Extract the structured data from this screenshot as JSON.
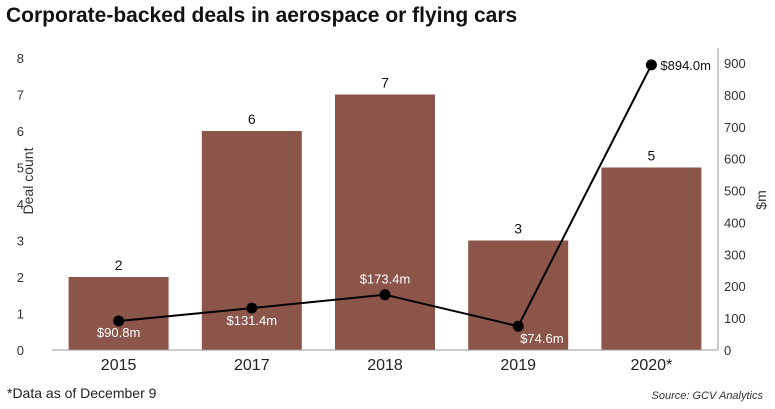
{
  "title": "Corporate-backed deals in aerospace or flying cars",
  "footnote": "*Data as of December 9",
  "source": "Source: GCV Analytics",
  "chart_data": {
    "type": "bar+line",
    "categories": [
      "2015",
      "2017",
      "2018",
      "2019",
      "2020*"
    ],
    "series": [
      {
        "name": "Deal count",
        "type": "bar",
        "axis": "left",
        "values": [
          2,
          6,
          7,
          3,
          5
        ],
        "labels": [
          "2",
          "6",
          "7",
          "3",
          "5"
        ]
      },
      {
        "name": "$m",
        "type": "line",
        "axis": "right",
        "values": [
          90.8,
          131.4,
          173.4,
          74.6,
          894.0
        ],
        "labels": [
          "$90.8m",
          "$131.4m",
          "$173.4m",
          "$74.6m",
          "$894.0m"
        ]
      }
    ],
    "ylabel_left": "Deal count",
    "ylabel_right": "$m",
    "ylim_left": [
      0,
      8
    ],
    "ylim_right": [
      0,
      900
    ],
    "yticks_left": [
      "0",
      "1",
      "2",
      "3",
      "4",
      "5",
      "6",
      "7",
      "8"
    ],
    "yticks_right": [
      "0",
      "100",
      "200",
      "300",
      "400",
      "500",
      "600",
      "700",
      "800",
      "900"
    ],
    "colors": {
      "bar": "#8B5549",
      "line": "#000000"
    }
  }
}
